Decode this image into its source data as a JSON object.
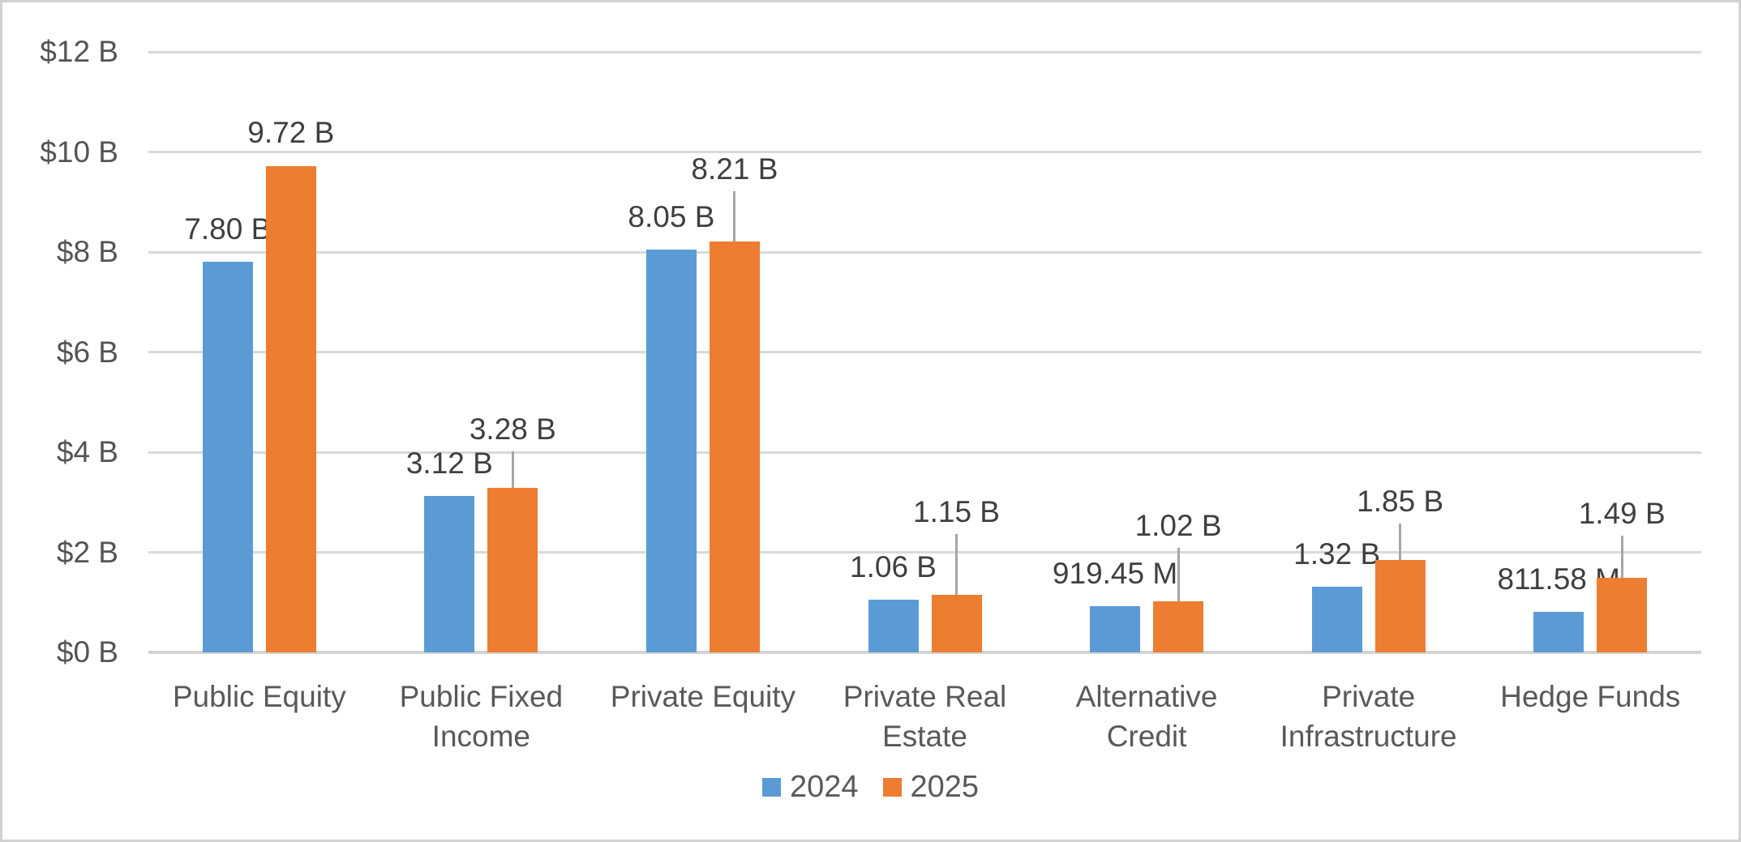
{
  "chart_data": {
    "type": "bar",
    "title": "",
    "categories": [
      "Public Equity",
      "Public Fixed Income",
      "Private Equity",
      "Private Real Estate",
      "Alternative Credit",
      "Private Infrastructure",
      "Hedge Funds"
    ],
    "category_label_lines": [
      [
        "Public Equity"
      ],
      [
        "Public Fixed",
        "Income"
      ],
      [
        "Private Equity"
      ],
      [
        "Private Real",
        "Estate"
      ],
      [
        "Alternative",
        "Credit"
      ],
      [
        "Private",
        "Infrastructure"
      ],
      [
        "Hedge Funds"
      ]
    ],
    "series": [
      {
        "name": "2024",
        "color": "#5B9BD5",
        "values_billions": [
          7.8,
          3.12,
          8.05,
          1.06,
          0.91945,
          1.32,
          0.81158
        ],
        "labels": [
          "7.80 B",
          "3.12 B",
          "8.05 B",
          "1.06 B",
          "919.45 M",
          "1.32 B",
          "811.58 M"
        ],
        "label_offsets": [
          22,
          22,
          22,
          22,
          22,
          22,
          22
        ],
        "leader_lines": [
          false,
          false,
          false,
          false,
          false,
          false,
          false
        ]
      },
      {
        "name": "2025",
        "color": "#ED7D31",
        "values_billions": [
          9.72,
          3.28,
          8.21,
          1.15,
          1.02,
          1.85,
          1.49
        ],
        "labels": [
          "9.72 B",
          "3.28 B",
          "8.21 B",
          "1.15 B",
          "1.02 B",
          "1.85 B",
          "1.49 B"
        ],
        "label_offsets": [
          23,
          54,
          71,
          84,
          75,
          54,
          61
        ],
        "leader_lines": [
          false,
          true,
          true,
          true,
          true,
          true,
          true
        ]
      }
    ],
    "y_axis": {
      "tick_labels": [
        "$12 B",
        "$10 B",
        "$8 B",
        "$6 B",
        "$4 B",
        "$2 B",
        "$0 B"
      ],
      "min_billions": 0,
      "max_billions": 12,
      "tick_step_billions": 2
    },
    "legend": {
      "position": "bottom",
      "entries": [
        "2024",
        "2025"
      ]
    },
    "grid": true,
    "colors": {
      "bar_2024": "#5B9BD5",
      "bar_2025": "#ED7D31",
      "gridline": "#D9D9D9",
      "axis_line": "#D3D3D3",
      "leader_line": "#A6A6A6",
      "data_label_text": "#3F3F3F",
      "axis_text": "#545454",
      "category_text": "#595959",
      "border": "#D2D2D2",
      "background": "#FFFFFF"
    }
  }
}
